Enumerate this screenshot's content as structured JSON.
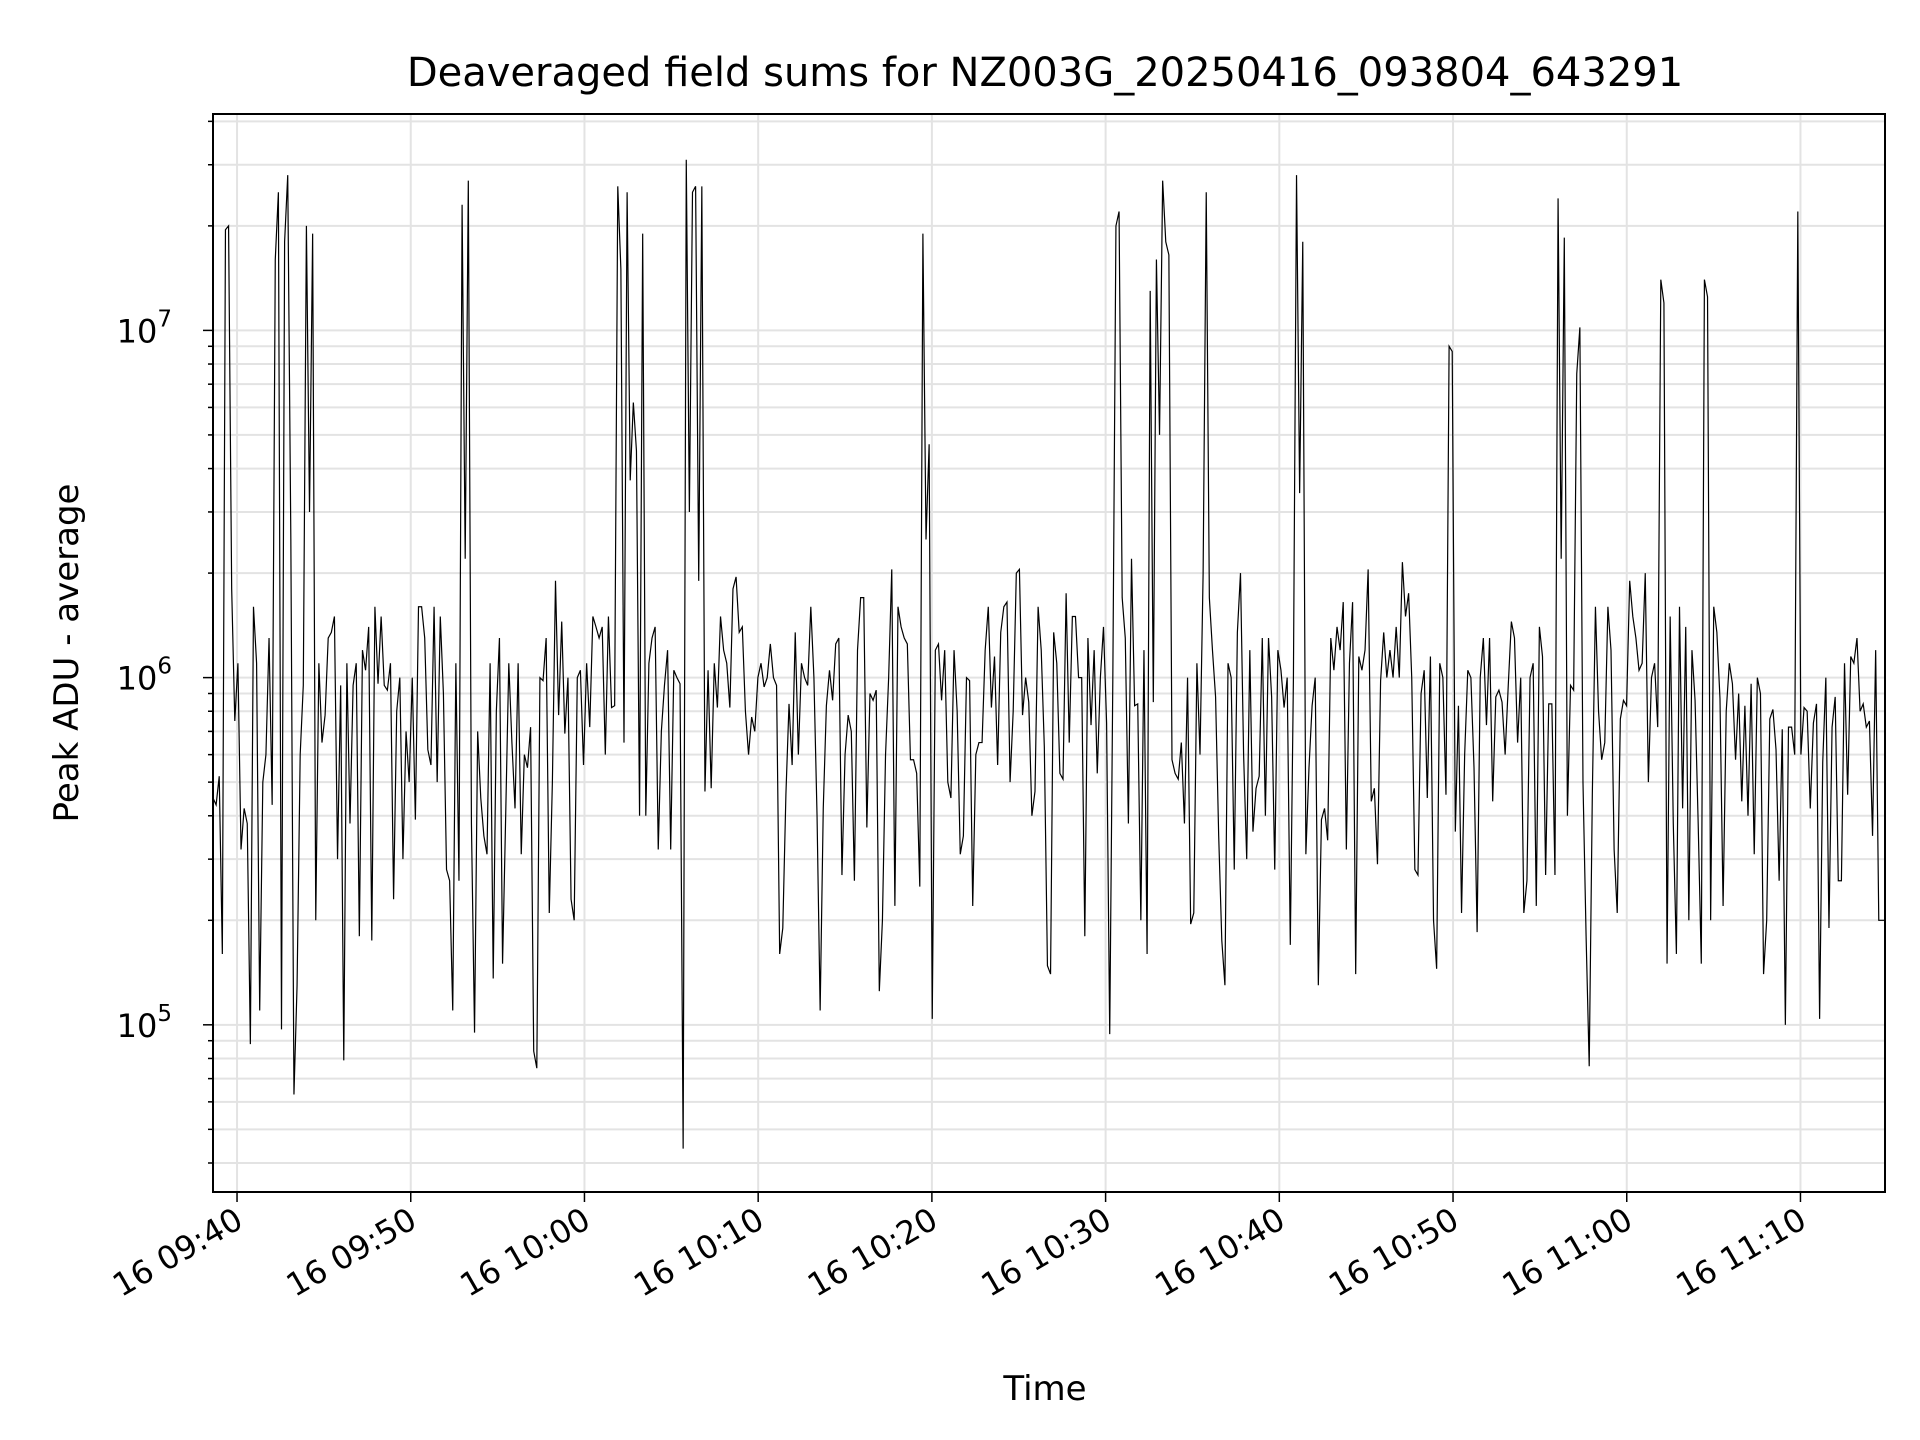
{
  "chart_data": {
    "type": "line",
    "title": "Deaveraged field sums for NZ003G_20250416_093804_643291",
    "xlabel": "Time",
    "ylabel": "Peak ADU - average",
    "yscale": "log",
    "ylim": [
      33000,
      42000000
    ],
    "xlim": [
      "2025-04-16 09:38:37",
      "2025-04-16 11:14:52"
    ],
    "grid": true,
    "x_ticks": [
      "16 09:40",
      "16 09:50",
      "16 10:00",
      "16 10:10",
      "16 10:20",
      "16 10:30",
      "16 10:40",
      "16 10:50",
      "16 11:00",
      "16 11:10"
    ],
    "y_ticks": [
      {
        "base": "10",
        "exp": "5",
        "value": 100000
      },
      {
        "base": "10",
        "exp": "6",
        "value": 1000000
      },
      {
        "base": "10",
        "exp": "7",
        "value": 10000000
      }
    ],
    "line_color": "#000000",
    "series": [
      {
        "x_start": "2025-04-16 09:38:37",
        "x_end": "2025-04-16 11:14:52",
        "interval": "about 10 s per sample",
        "values": [
          450000,
          430000,
          520000,
          160000,
          19500000,
          20000000,
          1800000,
          750000,
          1100000,
          320000,
          420000,
          380000,
          88000,
          1600000,
          1100000,
          110000,
          500000,
          600000,
          1300000,
          430000,
          16000000,
          25000000,
          97000,
          18000000,
          28000000,
          2500000,
          63000,
          130000,
          600000,
          950000,
          20000000,
          3000000,
          19000000,
          200000,
          1100000,
          650000,
          780000,
          1300000,
          1350000,
          1500000,
          300000,
          950000,
          79000,
          1100000,
          380000,
          950000,
          1100000,
          180000,
          1200000,
          1050000,
          1400000,
          175000,
          1600000,
          960000,
          1500000,
          950000,
          920000,
          1100000,
          230000,
          800000,
          1000000,
          300000,
          700000,
          500000,
          1000000,
          390000,
          1600000,
          1600000,
          1300000,
          620000,
          560000,
          1600000,
          500000,
          1500000,
          900000,
          280000,
          260000,
          110000,
          1100000,
          260000,
          23000000,
          2200000,
          27000000,
          380000,
          95000,
          700000,
          450000,
          350000,
          310000,
          1100000,
          136000,
          800000,
          1300000,
          150000,
          400000,
          1100000,
          650000,
          420000,
          1100000,
          310000,
          600000,
          550000,
          720000,
          84000,
          75000,
          1000000,
          980000,
          1300000,
          210000,
          500000,
          1900000,
          780000,
          1450000,
          690000,
          1000000,
          230000,
          200000,
          1000000,
          1050000,
          560000,
          1100000,
          720000,
          1500000,
          1400000,
          1300000,
          1400000,
          600000,
          1500000,
          820000,
          830000,
          26000000,
          15000000,
          650000,
          25000000,
          3700000,
          6200000,
          4500000,
          400000,
          19000000,
          400000,
          1100000,
          1300000,
          1400000,
          320000,
          700000,
          950000,
          1200000,
          320000,
          1050000,
          1000000,
          960000,
          44000,
          31000000,
          3000000,
          25000000,
          26000000,
          1900000,
          26000000,
          470000,
          1050000,
          480000,
          1100000,
          820000,
          1500000,
          1200000,
          1100000,
          820000,
          1800000,
          1950000,
          1350000,
          1400000,
          800000,
          600000,
          770000,
          700000,
          1000000,
          1100000,
          940000,
          1000000,
          1250000,
          1000000,
          950000,
          160000,
          190000,
          460000,
          840000,
          560000,
          1350000,
          600000,
          1100000,
          1000000,
          950000,
          1600000,
          1000000,
          400000,
          110000,
          420000,
          830000,
          1050000,
          860000,
          1250000,
          1300000,
          270000,
          600000,
          780000,
          700000,
          260000,
          1200000,
          1700000,
          1700000,
          370000,
          900000,
          860000,
          920000,
          125000,
          200000,
          600000,
          1000000,
          2050000,
          220000,
          1600000,
          1400000,
          1300000,
          1250000,
          580000,
          580000,
          530000,
          250000,
          19000000,
          2500000,
          4700000,
          104000,
          1200000,
          1250000,
          860000,
          1200000,
          500000,
          450000,
          1200000,
          800000,
          310000,
          350000,
          1000000,
          980000,
          220000,
          600000,
          650000,
          650000,
          1200000,
          1600000,
          820000,
          1150000,
          560000,
          1350000,
          1600000,
          1650000,
          500000,
          800000,
          2000000,
          2050000,
          780000,
          1000000,
          850000,
          400000,
          470000,
          1600000,
          1200000,
          630000,
          148000,
          140000,
          1350000,
          1100000,
          530000,
          510000,
          1750000,
          650000,
          1500000,
          1500000,
          1000000,
          1000000,
          180000,
          1300000,
          730000,
          1200000,
          530000,
          1000000,
          1400000,
          740000,
          94000,
          1000000,
          20000000,
          22000000,
          1700000,
          1300000,
          380000,
          2200000,
          830000,
          840000,
          200000,
          1200000,
          160000,
          13000000,
          850000,
          16000000,
          5000000,
          27000000,
          18000000,
          16500000,
          580000,
          530000,
          510000,
          650000,
          380000,
          1000000,
          195000,
          210000,
          1100000,
          600000,
          2000000,
          25000000,
          1700000,
          1200000,
          880000,
          350000,
          175000,
          130000,
          1100000,
          1000000,
          280000,
          1350000,
          2000000,
          600000,
          300000,
          1200000,
          360000,
          480000,
          520000,
          1300000,
          400000,
          1300000,
          880000,
          280000,
          1200000,
          1050000,
          820000,
          1000000,
          170000,
          1000000,
          28000000,
          3400000,
          18000000,
          310000,
          550000,
          830000,
          1000000,
          130000,
          390000,
          420000,
          340000,
          1300000,
          1050000,
          1400000,
          1200000,
          1650000,
          320000,
          1100000,
          1650000,
          140000,
          1150000,
          1050000,
          1200000,
          2050000,
          440000,
          480000,
          290000,
          980000,
          1350000,
          1000000,
          1200000,
          1000000,
          1400000,
          1000000,
          2150000,
          1500000,
          1750000,
          1000000,
          280000,
          270000,
          900000,
          1050000,
          450000,
          1150000,
          200000,
          145000,
          1100000,
          1000000,
          460000,
          9000000,
          8700000,
          360000,
          830000,
          210000,
          600000,
          1050000,
          1000000,
          550000,
          185000,
          1000000,
          1300000,
          730000,
          1300000,
          440000,
          880000,
          920000,
          850000,
          600000,
          950000,
          1450000,
          1300000,
          650000,
          1000000,
          210000,
          260000,
          1000000,
          1100000,
          220000,
          1400000,
          1150000,
          270000,
          840000,
          840000,
          270000,
          24000000,
          2200000,
          18500000,
          400000,
          950000,
          920000,
          7500000,
          10200000,
          500000,
          180000,
          76000,
          460000,
          1600000,
          800000,
          580000,
          650000,
          1600000,
          1200000,
          320000,
          210000,
          760000,
          860000,
          830000,
          1900000,
          1500000,
          1300000,
          1050000,
          1100000,
          2000000,
          500000,
          1000000,
          1100000,
          720000,
          14000000,
          12000000,
          150000,
          1500000,
          380000,
          160000,
          1600000,
          420000,
          1400000,
          200000,
          1200000,
          860000,
          380000,
          150000,
          14000000,
          12500000,
          200000,
          1600000,
          1350000,
          870000,
          220000,
          800000,
          1100000,
          960000,
          580000,
          900000,
          440000,
          830000,
          400000,
          960000,
          310000,
          1000000,
          900000,
          140000,
          200000,
          760000,
          810000,
          620000,
          260000,
          710000,
          100000,
          720000,
          720000,
          600000,
          22000000,
          600000,
          820000,
          800000,
          420000,
          740000,
          840000,
          104000,
          570000,
          1000000,
          190000,
          720000,
          880000,
          260000,
          260000,
          1100000,
          460000,
          1150000,
          1100000,
          1300000,
          800000,
          840000,
          720000,
          750000,
          350000,
          1200000,
          200000,
          200000,
          200000
        ]
      }
    ]
  }
}
